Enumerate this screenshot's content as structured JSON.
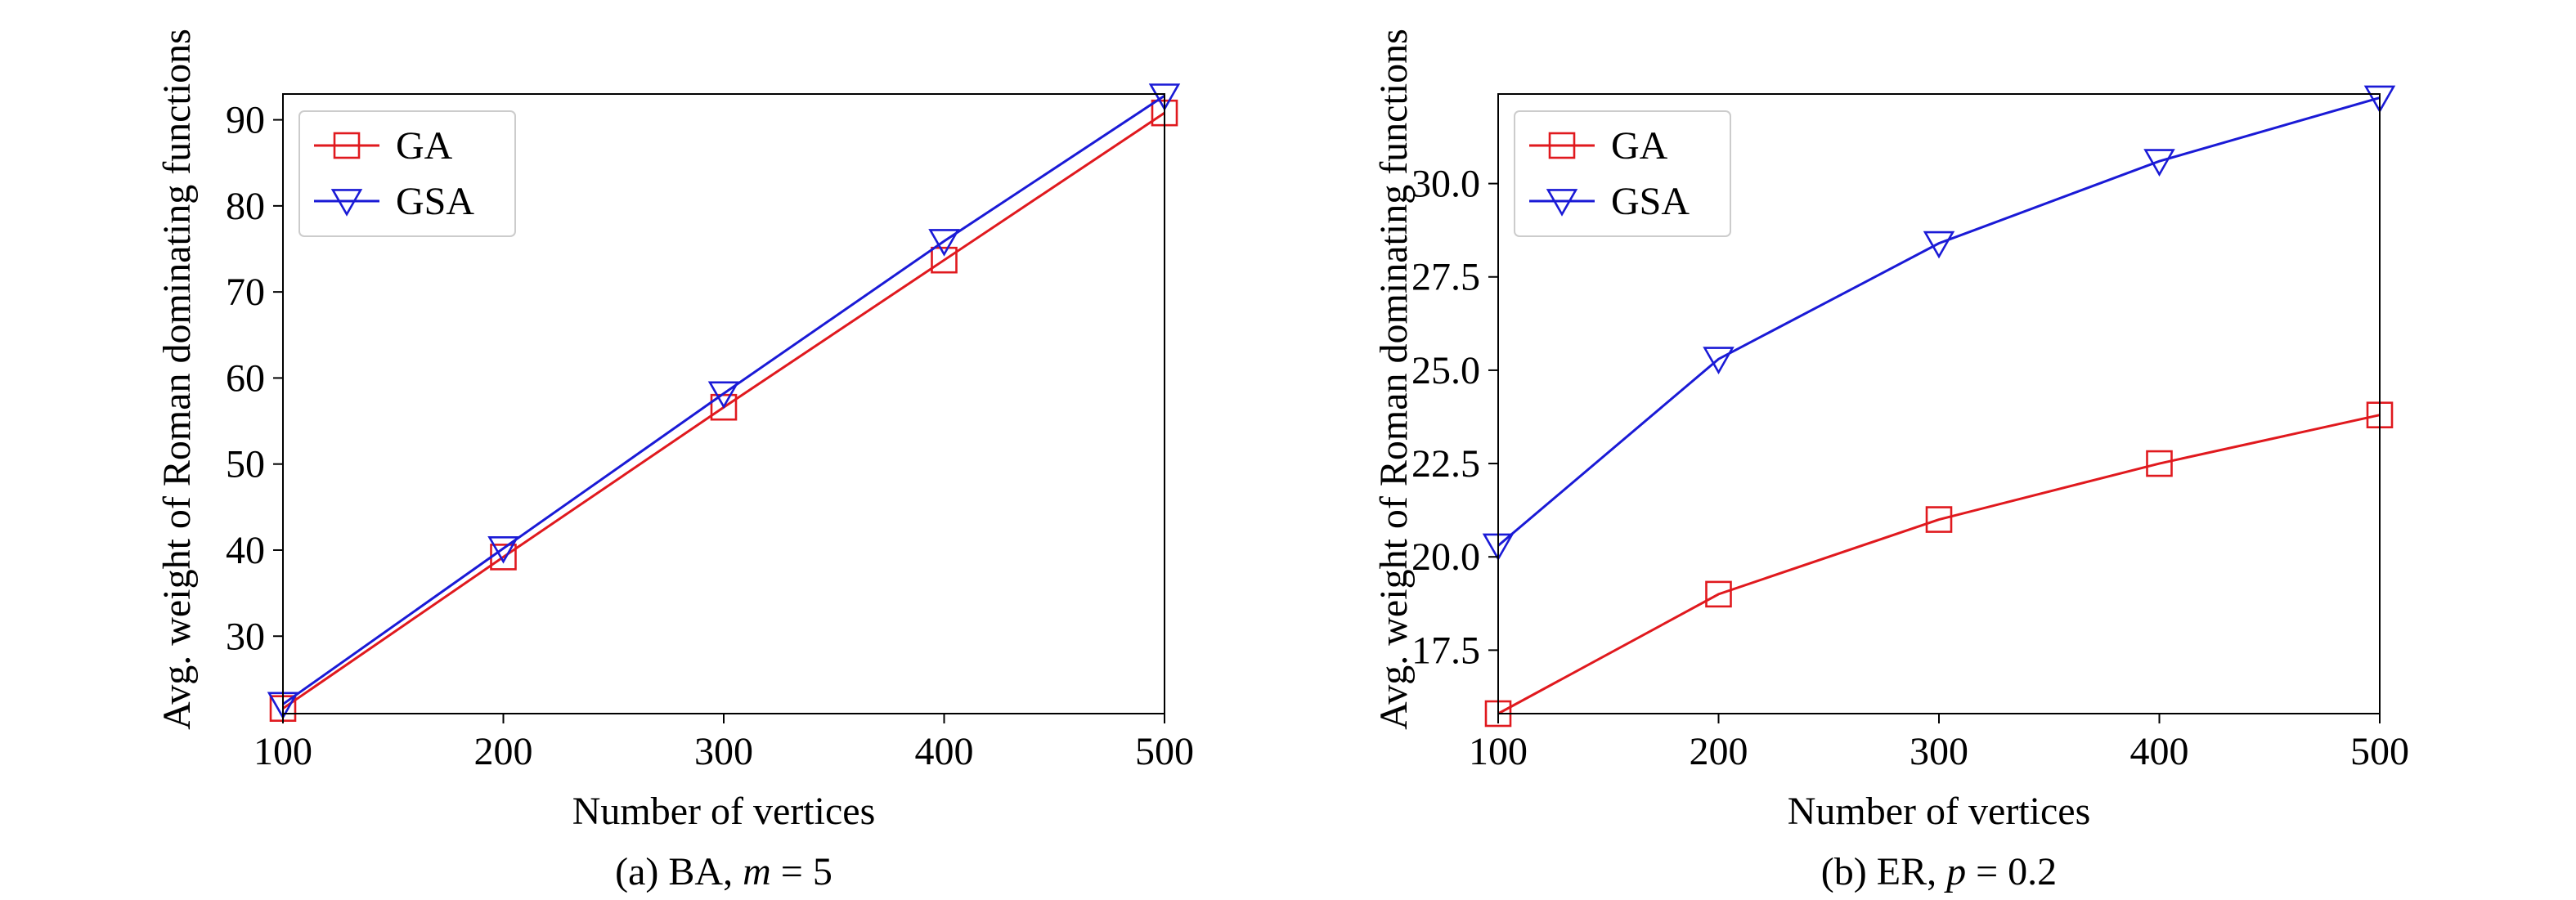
{
  "colors": {
    "GA": "#e0191e",
    "GSA": "#1a1ad6",
    "axis": "#000000",
    "legend_border": "#cccccc"
  },
  "chart_data": [
    {
      "type": "line",
      "caption": {
        "prefix": "(a) BA, ",
        "var": "m",
        "suffix": " = 5"
      },
      "xlabel": "Number of vertices",
      "ylabel": "Avg. weight of Roman dominating functions",
      "x": [
        100,
        200,
        300,
        400,
        500
      ],
      "xlim": [
        100,
        500
      ],
      "ylim": [
        21,
        93
      ],
      "xticks": [
        100,
        200,
        300,
        400,
        500
      ],
      "yticks": [
        30,
        40,
        50,
        60,
        70,
        80,
        90
      ],
      "ytick_labels": [
        "30",
        "40",
        "50",
        "60",
        "70",
        "80",
        "90"
      ],
      "grid": false,
      "legend": "top-left",
      "series": [
        {
          "name": "GA",
          "marker": "square",
          "values": [
            21.6,
            39.2,
            56.6,
            73.7,
            90.8
          ]
        },
        {
          "name": "GSA",
          "marker": "triangle-down",
          "values": [
            22.1,
            40.2,
            58.2,
            75.9,
            92.8
          ]
        }
      ]
    },
    {
      "type": "line",
      "caption": {
        "prefix": "(b) ER, ",
        "var": "p",
        "suffix": " = 0.2"
      },
      "xlabel": "Number of vertices",
      "ylabel": "Avg. weight of Roman dominating functions",
      "x": [
        100,
        200,
        300,
        400,
        500
      ],
      "xlim": [
        100,
        500
      ],
      "ylim": [
        15.8,
        32.4
      ],
      "xticks": [
        100,
        200,
        300,
        400,
        500
      ],
      "yticks": [
        17.5,
        20.0,
        22.5,
        25.0,
        27.5,
        30.0
      ],
      "ytick_labels": [
        "17.5",
        "20.0",
        "22.5",
        "25.0",
        "27.5",
        "30.0"
      ],
      "grid": false,
      "legend": "top-left",
      "series": [
        {
          "name": "GA",
          "marker": "square",
          "values": [
            15.8,
            19.0,
            21.0,
            22.5,
            23.8
          ]
        },
        {
          "name": "GSA",
          "marker": "triangle-down",
          "values": [
            20.3,
            25.3,
            28.4,
            30.6,
            32.3
          ]
        }
      ]
    }
  ]
}
